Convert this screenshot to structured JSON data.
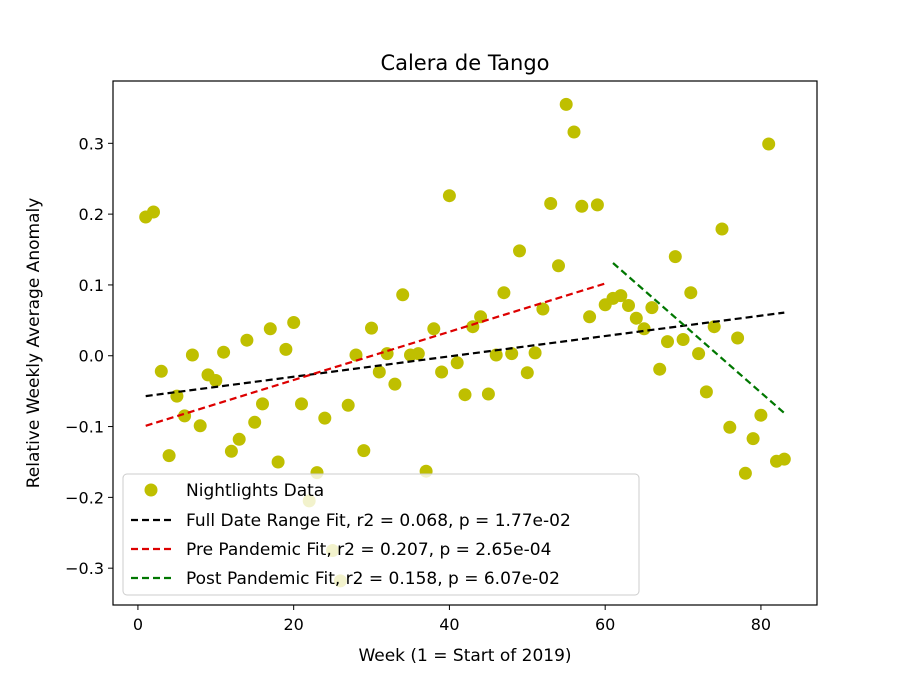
{
  "chart_data": {
    "type": "scatter",
    "title": "Calera de Tango",
    "xlabel": "Week (1 = Start of 2019)",
    "ylabel": "Relative Weekly Average Anomaly",
    "xlim": [
      -3.2,
      87.2
    ],
    "ylim": [
      -0.352,
      0.388
    ],
    "xticks": [
      0,
      20,
      40,
      60,
      80
    ],
    "xtick_labels": [
      "0",
      "20",
      "40",
      "60",
      "80"
    ],
    "yticks": [
      -0.3,
      -0.2,
      -0.1,
      0.0,
      0.1,
      0.2,
      0.3
    ],
    "ytick_labels": [
      "−0.3",
      "−0.2",
      "−0.1",
      "0.0",
      "0.1",
      "0.2",
      "0.3"
    ],
    "grid": false,
    "legend_position": "lower-left",
    "series": [
      {
        "name": "Nightlights Data",
        "kind": "scatter",
        "color": "#bfbf00",
        "points": [
          [
            1,
            0.196
          ],
          [
            2,
            0.203
          ],
          [
            3,
            -0.022
          ],
          [
            4,
            -0.141
          ],
          [
            5,
            -0.057
          ],
          [
            6,
            -0.085
          ],
          [
            7,
            0.001
          ],
          [
            8,
            -0.099
          ],
          [
            9,
            -0.027
          ],
          [
            10,
            -0.035
          ],
          [
            11,
            0.005
          ],
          [
            12,
            -0.135
          ],
          [
            13,
            -0.118
          ],
          [
            14,
            0.022
          ],
          [
            15,
            -0.094
          ],
          [
            16,
            -0.068
          ],
          [
            17,
            0.038
          ],
          [
            18,
            -0.15
          ],
          [
            19,
            0.009
          ],
          [
            20,
            0.047
          ],
          [
            21,
            -0.068
          ],
          [
            22,
            -0.205
          ],
          [
            23,
            -0.165
          ],
          [
            24,
            -0.088
          ],
          [
            25,
            -0.275
          ],
          [
            26,
            -0.318
          ],
          [
            27,
            -0.07
          ],
          [
            28,
            0.001
          ],
          [
            29,
            -0.134
          ],
          [
            30,
            0.039
          ],
          [
            31,
            -0.023
          ],
          [
            32,
            0.003
          ],
          [
            33,
            -0.04
          ],
          [
            34,
            0.086
          ],
          [
            35,
            0.001
          ],
          [
            36,
            0.003
          ],
          [
            37,
            -0.163
          ],
          [
            38,
            0.038
          ],
          [
            39,
            -0.023
          ],
          [
            40,
            0.226
          ],
          [
            41,
            -0.01
          ],
          [
            42,
            -0.055
          ],
          [
            43,
            0.041
          ],
          [
            44,
            0.055
          ],
          [
            45,
            -0.054
          ],
          [
            46,
            0.001
          ],
          [
            47,
            0.089
          ],
          [
            48,
            0.003
          ],
          [
            49,
            0.148
          ],
          [
            50,
            -0.024
          ],
          [
            51,
            0.004
          ],
          [
            52,
            0.066
          ],
          [
            53,
            0.215
          ],
          [
            54,
            0.127
          ],
          [
            55,
            0.355
          ],
          [
            56,
            0.316
          ],
          [
            57,
            0.211
          ],
          [
            58,
            0.055
          ],
          [
            59,
            0.213
          ],
          [
            60,
            0.072
          ],
          [
            61,
            0.081
          ],
          [
            62,
            0.085
          ],
          [
            63,
            0.071
          ],
          [
            64,
            0.053
          ],
          [
            65,
            0.038
          ],
          [
            66,
            0.068
          ],
          [
            67,
            -0.019
          ],
          [
            68,
            0.02
          ],
          [
            69,
            0.14
          ],
          [
            70,
            0.023
          ],
          [
            71,
            0.089
          ],
          [
            72,
            0.003
          ],
          [
            73,
            -0.051
          ],
          [
            74,
            0.041
          ],
          [
            75,
            0.179
          ],
          [
            76,
            -0.101
          ],
          [
            77,
            0.025
          ],
          [
            78,
            -0.166
          ],
          [
            79,
            -0.117
          ],
          [
            80,
            -0.084
          ],
          [
            81,
            0.299
          ],
          [
            82,
            -0.149
          ],
          [
            83,
            -0.146
          ]
        ]
      },
      {
        "name": "Full Date Range Fit, r2 = 0.068, p = 1.77e-02",
        "kind": "line",
        "color": "#000000",
        "x": [
          1,
          83
        ],
        "y": [
          -0.057,
          0.061
        ]
      },
      {
        "name": "Pre Pandemic Fit, r2 = 0.207, p = 2.65e-04",
        "kind": "line",
        "color": "#dd0000",
        "x": [
          1,
          60
        ],
        "y": [
          -0.099,
          0.102
        ]
      },
      {
        "name": "Post Pandemic Fit, r2 = 0.158, p = 6.07e-02",
        "kind": "line",
        "color": "#007700",
        "x": [
          61,
          83
        ],
        "y": [
          0.131,
          -0.081
        ]
      }
    ]
  }
}
